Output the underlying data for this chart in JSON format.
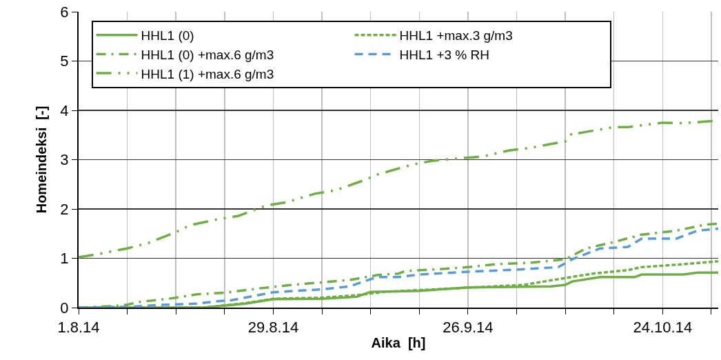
{
  "chart_data": {
    "type": "line",
    "xlabel": "Aika  [h]",
    "ylabel": "Homeindeksi  [-]",
    "xlim": [
      "--08-01",
      "--11-01"
    ],
    "xticks": [
      {
        "value": "--08-01",
        "label": "1.8.14"
      },
      {
        "value": "--08-08",
        "label": null
      },
      {
        "value": "--08-15",
        "label": null
      },
      {
        "value": "--08-22",
        "label": null
      },
      {
        "value": "--08-29",
        "label": "29.8.14"
      },
      {
        "value": "--09-05",
        "label": null
      },
      {
        "value": "--09-12",
        "label": null
      },
      {
        "value": "--09-19",
        "label": null
      },
      {
        "value": "--09-26",
        "label": "26.9.14"
      },
      {
        "value": "--10-03",
        "label": null
      },
      {
        "value": "--10-10",
        "label": null
      },
      {
        "value": "--10-17",
        "label": null
      },
      {
        "value": "--10-24",
        "label": "24.10.14"
      },
      {
        "value": "--10-31",
        "label": null
      }
    ],
    "ylim": [
      0,
      6
    ],
    "yticks": [
      0,
      1,
      2,
      3,
      4,
      5,
      6
    ],
    "grid": true,
    "legend": "top left",
    "marker": "none",
    "series": [
      {
        "name": "HHL1 (0)",
        "color": "#70ad47",
        "line_style": "solid",
        "x": [
          "--08-01",
          "--08-19",
          "--08-25",
          "--08-29",
          "--09-05",
          "--09-10",
          "--09-12",
          "--09-16",
          "--09-19",
          "--09-26",
          "--10-08",
          "--10-10",
          "--10-11",
          "--10-15",
          "--10-20",
          "--10-21",
          "--10-27",
          "--10-29",
          "--11-01"
        ],
        "values": [
          0,
          0,
          0.08,
          0.17,
          0.18,
          0.22,
          0.32,
          0.33,
          0.34,
          0.41,
          0.43,
          0.46,
          0.53,
          0.62,
          0.62,
          0.67,
          0.67,
          0.71,
          0.71
        ]
      },
      {
        "name": "HHL1 +max.3 g/m3",
        "color": "#70ad47",
        "line_style": "dotted",
        "x": [
          "--08-01",
          "--08-19",
          "--08-25",
          "--08-29",
          "--09-05",
          "--09-10",
          "--09-14",
          "--09-24",
          "--10-04",
          "--10-07",
          "--10-10",
          "--10-14",
          "--10-19",
          "--10-21",
          "--10-27",
          "--11-01"
        ],
        "values": [
          0,
          0,
          0.09,
          0.18,
          0.2,
          0.25,
          0.32,
          0.39,
          0.46,
          0.53,
          0.6,
          0.69,
          0.76,
          0.82,
          0.88,
          0.94
        ]
      },
      {
        "name": "HHL1 (0) +max.6 g/m3",
        "color": "#70ad47",
        "line_style": "dashdot",
        "x": [
          "--08-01",
          "--08-06",
          "--08-08",
          "--08-10",
          "--08-14",
          "--08-18",
          "--08-22",
          "--08-27",
          "--08-31",
          "--09-04",
          "--09-09",
          "--09-13",
          "--09-16",
          "--09-17",
          "--09-22",
          "--09-26",
          "--09-30",
          "--10-05",
          "--10-10",
          "--10-13",
          "--10-17",
          "--10-21",
          "--10-26",
          "--10-30",
          "--11-01"
        ],
        "values": [
          0,
          0.03,
          0.06,
          0.12,
          0.18,
          0.27,
          0.3,
          0.39,
          0.45,
          0.5,
          0.56,
          0.66,
          0.69,
          0.74,
          0.78,
          0.82,
          0.88,
          0.91,
          0.98,
          1.2,
          1.33,
          1.48,
          1.56,
          1.68,
          1.7
        ]
      },
      {
        "name": "HHL1 +3 % RH",
        "color": "#5b9bd5",
        "line_style": "dashed",
        "x": [
          "--08-01",
          "--08-09",
          "--08-12",
          "--08-18",
          "--08-21",
          "--08-23",
          "--08-26",
          "--08-29",
          "--08-31",
          "--09-05",
          "--09-09",
          "--09-11",
          "--09-13",
          "--09-16",
          "--09-19",
          "--09-25",
          "--10-03",
          "--10-09",
          "--10-11",
          "--10-15",
          "--10-19",
          "--10-21",
          "--10-26",
          "--10-29",
          "--11-01"
        ],
        "values": [
          0,
          0.02,
          0.05,
          0.08,
          0.13,
          0.15,
          0.23,
          0.31,
          0.33,
          0.37,
          0.43,
          0.53,
          0.62,
          0.62,
          0.67,
          0.72,
          0.77,
          0.82,
          0.98,
          1.2,
          1.23,
          1.4,
          1.4,
          1.56,
          1.6
        ]
      },
      {
        "name": "HHL1 (1) +max.6 g/m3",
        "color": "#70ad47",
        "line_style": "dashdotdot",
        "x": [
          "--08-01",
          "--08-04",
          "--08-08",
          "--08-11",
          "--08-15",
          "--08-17",
          "--08-21",
          "--08-24",
          "--08-28",
          "--08-31",
          "--09-04",
          "--09-07",
          "--09-11",
          "--09-13",
          "--09-18",
          "--09-21",
          "--09-25",
          "--09-28",
          "--10-02",
          "--10-05",
          "--10-10",
          "--10-11",
          "--10-12",
          "--10-17",
          "--10-19",
          "--10-24",
          "--10-27",
          "--11-01"
        ],
        "values": [
          1.02,
          1.09,
          1.2,
          1.31,
          1.53,
          1.67,
          1.79,
          1.86,
          2.07,
          2.14,
          2.31,
          2.38,
          2.58,
          2.7,
          2.9,
          2.98,
          3.03,
          3.06,
          3.19,
          3.24,
          3.37,
          3.54,
          3.54,
          3.66,
          3.66,
          3.75,
          3.74,
          3.79
        ]
      }
    ]
  }
}
